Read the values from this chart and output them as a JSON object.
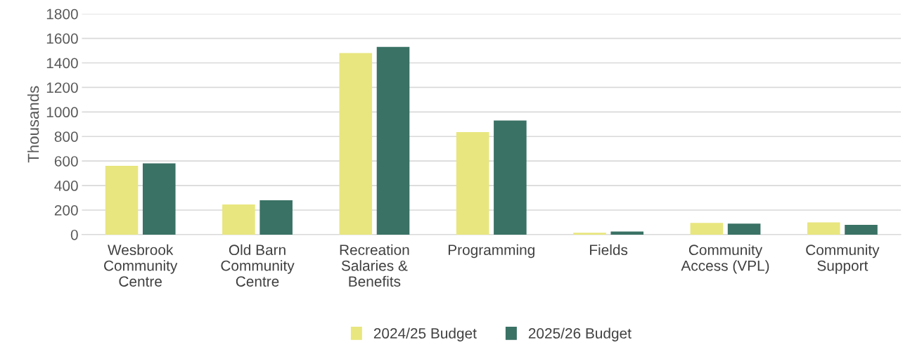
{
  "chart_data": {
    "type": "bar",
    "ylabel": "Thousands",
    "categories": [
      "Wesbrook\nCommunity\nCentre",
      "Old Barn\nCommunity\nCentre",
      "Recreation\nSalaries &\nBenefits",
      "Programming",
      "Fields",
      "Community\nAccess (VPL)",
      "Community\nSupport"
    ],
    "series": [
      {
        "name": "2024/25 Budget",
        "color": "#e8e67e",
        "values": [
          560,
          245,
          1480,
          835,
          15,
          95,
          100
        ]
      },
      {
        "name": "2025/26 Budget",
        "color": "#3a7265",
        "values": [
          580,
          280,
          1530,
          930,
          25,
          90,
          80
        ]
      }
    ],
    "ylim": [
      0,
      1800
    ],
    "yticks": [
      0,
      200,
      400,
      600,
      800,
      1000,
      1200,
      1400,
      1600,
      1800
    ],
    "grid": "y",
    "legend": "bottom"
  }
}
